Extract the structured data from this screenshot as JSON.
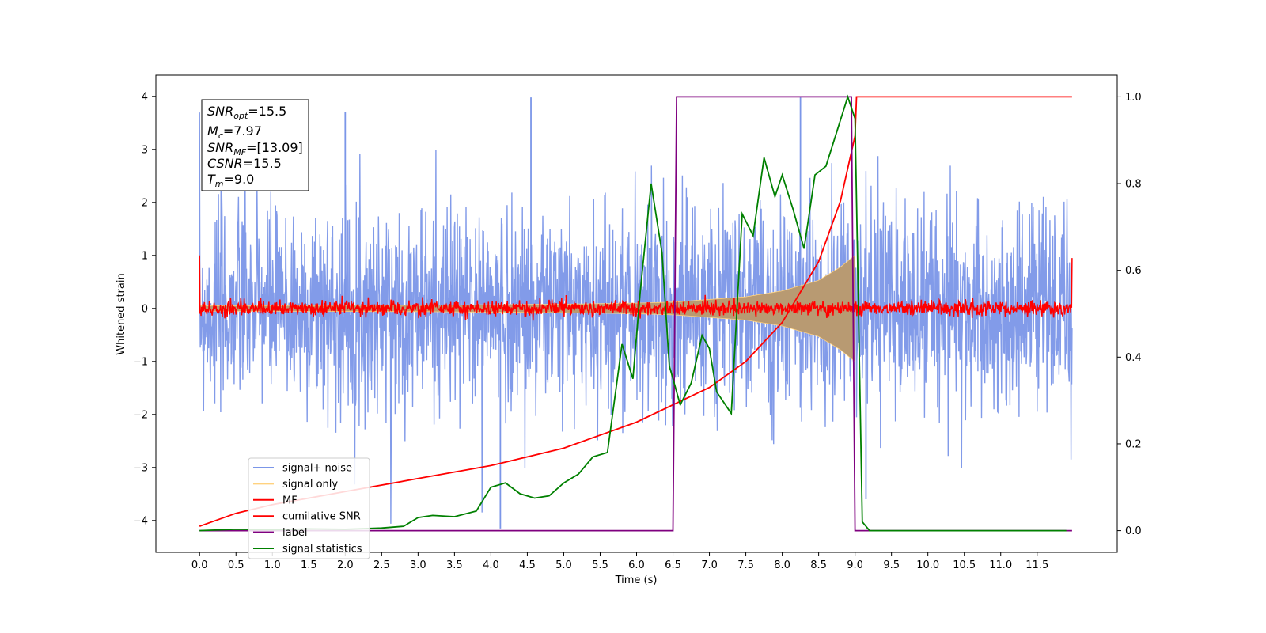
{
  "chart_data": {
    "type": "line",
    "xlabel": "Time (s)",
    "ylabel": "Whitened strain",
    "xlim": [
      -0.6,
      12.6
    ],
    "ylim": [
      -4.6,
      4.4
    ],
    "y2lim": [
      -0.05,
      1.05
    ],
    "x_ticks": [
      "0.0",
      "0.5",
      "1.0",
      "1.5",
      "2.0",
      "2.5",
      "3.0",
      "3.5",
      "4.0",
      "4.5",
      "5.0",
      "5.5",
      "6.0",
      "6.5",
      "7.0",
      "7.5",
      "8.0",
      "8.5",
      "9.0",
      "9.5",
      "10.0",
      "10.5",
      "11.0",
      "11.5"
    ],
    "y_ticks": [
      "4",
      "3",
      "2",
      "1",
      "0",
      "−1",
      "−2",
      "−3",
      "−4"
    ],
    "y2_ticks": [
      "1.0",
      "0.8",
      "0.6",
      "0.4",
      "0.2",
      "0.0"
    ],
    "annotation": {
      "snr_opt": {
        "symbol": "SNR",
        "sub": "opt",
        "value": "=15.5"
      },
      "mc": {
        "symbol": "M",
        "sub": "c",
        "value": "=7.97"
      },
      "snr_mf": {
        "symbol": "SNR",
        "sub": "MF",
        "value": "=[13.09]"
      },
      "csnr": {
        "symbol": "CSNR",
        "sub": "",
        "value": "=15.5"
      },
      "tm": {
        "symbol": "T",
        "sub": "m",
        "value": "=9.0"
      }
    },
    "legend_position": "lower-left",
    "series": [
      {
        "name": "signal+ noise",
        "color": "#7b96e8",
        "axis": "left",
        "noise_std": 0.95,
        "t_start": 0.0,
        "t_end": 11.98,
        "spikes": [
          [
            4.13,
            -4.15
          ],
          [
            4.55,
            3.98
          ],
          [
            8.25,
            3.98
          ],
          [
            9.15,
            -3.6
          ],
          [
            2.0,
            3.7
          ]
        ]
      },
      {
        "name": "signal only",
        "color": "#ffd27f",
        "axis": "left",
        "envelope": [
          [
            0.0,
            0.05
          ],
          [
            3.0,
            0.06
          ],
          [
            5.0,
            0.08
          ],
          [
            6.0,
            0.1
          ],
          [
            6.5,
            0.12
          ],
          [
            7.0,
            0.17
          ],
          [
            7.5,
            0.22
          ],
          [
            8.0,
            0.33
          ],
          [
            8.5,
            0.53
          ],
          [
            8.8,
            0.78
          ],
          [
            8.95,
            0.95
          ],
          [
            9.0,
            1.0
          ]
        ]
      },
      {
        "name": "MF",
        "color": "#ff0000",
        "axis": "left",
        "noise_std": 0.07,
        "t_start": 0.0,
        "t_end": 11.98,
        "edges": [
          [
            0.0,
            1.0
          ],
          [
            11.98,
            0.95
          ]
        ]
      },
      {
        "name": "cumilative SNR",
        "color": "#ff0000",
        "axis": "right",
        "points": [
          [
            0.0,
            0.01
          ],
          [
            0.5,
            0.04
          ],
          [
            1.0,
            0.06
          ],
          [
            2.0,
            0.09
          ],
          [
            3.0,
            0.12
          ],
          [
            4.0,
            0.15
          ],
          [
            5.0,
            0.19
          ],
          [
            6.0,
            0.25
          ],
          [
            7.0,
            0.33
          ],
          [
            7.5,
            0.39
          ],
          [
            8.0,
            0.48
          ],
          [
            8.5,
            0.62
          ],
          [
            8.8,
            0.76
          ],
          [
            9.0,
            0.91
          ],
          [
            9.02,
            1.0
          ],
          [
            11.98,
            1.0
          ]
        ]
      },
      {
        "name": "label",
        "color": "#7f007f",
        "axis": "right",
        "points": [
          [
            0.0,
            0.0
          ],
          [
            6.5,
            0.0
          ],
          [
            6.55,
            1.0
          ],
          [
            8.95,
            1.0
          ],
          [
            9.0,
            0.0
          ],
          [
            11.98,
            0.0
          ]
        ]
      },
      {
        "name": "signal statistics",
        "color": "#008000",
        "axis": "right",
        "points": [
          [
            0.0,
            0.0
          ],
          [
            0.5,
            0.003
          ],
          [
            1.0,
            0.002
          ],
          [
            1.5,
            0.004
          ],
          [
            2.0,
            0.003
          ],
          [
            2.5,
            0.006
          ],
          [
            2.8,
            0.01
          ],
          [
            3.0,
            0.03
          ],
          [
            3.2,
            0.035
          ],
          [
            3.5,
            0.032
          ],
          [
            3.8,
            0.045
          ],
          [
            4.0,
            0.1
          ],
          [
            4.2,
            0.11
          ],
          [
            4.4,
            0.085
          ],
          [
            4.6,
            0.075
          ],
          [
            4.8,
            0.08
          ],
          [
            5.0,
            0.11
          ],
          [
            5.2,
            0.13
          ],
          [
            5.4,
            0.17
          ],
          [
            5.6,
            0.18
          ],
          [
            5.8,
            0.43
          ],
          [
            5.95,
            0.35
          ],
          [
            6.05,
            0.55
          ],
          [
            6.2,
            0.8
          ],
          [
            6.35,
            0.64
          ],
          [
            6.45,
            0.38
          ],
          [
            6.6,
            0.29
          ],
          [
            6.75,
            0.34
          ],
          [
            6.9,
            0.45
          ],
          [
            7.0,
            0.42
          ],
          [
            7.1,
            0.32
          ],
          [
            7.3,
            0.27
          ],
          [
            7.45,
            0.73
          ],
          [
            7.6,
            0.68
          ],
          [
            7.75,
            0.86
          ],
          [
            7.9,
            0.77
          ],
          [
            8.0,
            0.82
          ],
          [
            8.15,
            0.74
          ],
          [
            8.3,
            0.65
          ],
          [
            8.45,
            0.82
          ],
          [
            8.6,
            0.84
          ],
          [
            8.75,
            0.92
          ],
          [
            8.9,
            1.0
          ],
          [
            9.0,
            0.95
          ],
          [
            9.1,
            0.02
          ],
          [
            9.2,
            0.0
          ],
          [
            11.9,
            0.0
          ]
        ]
      }
    ]
  }
}
